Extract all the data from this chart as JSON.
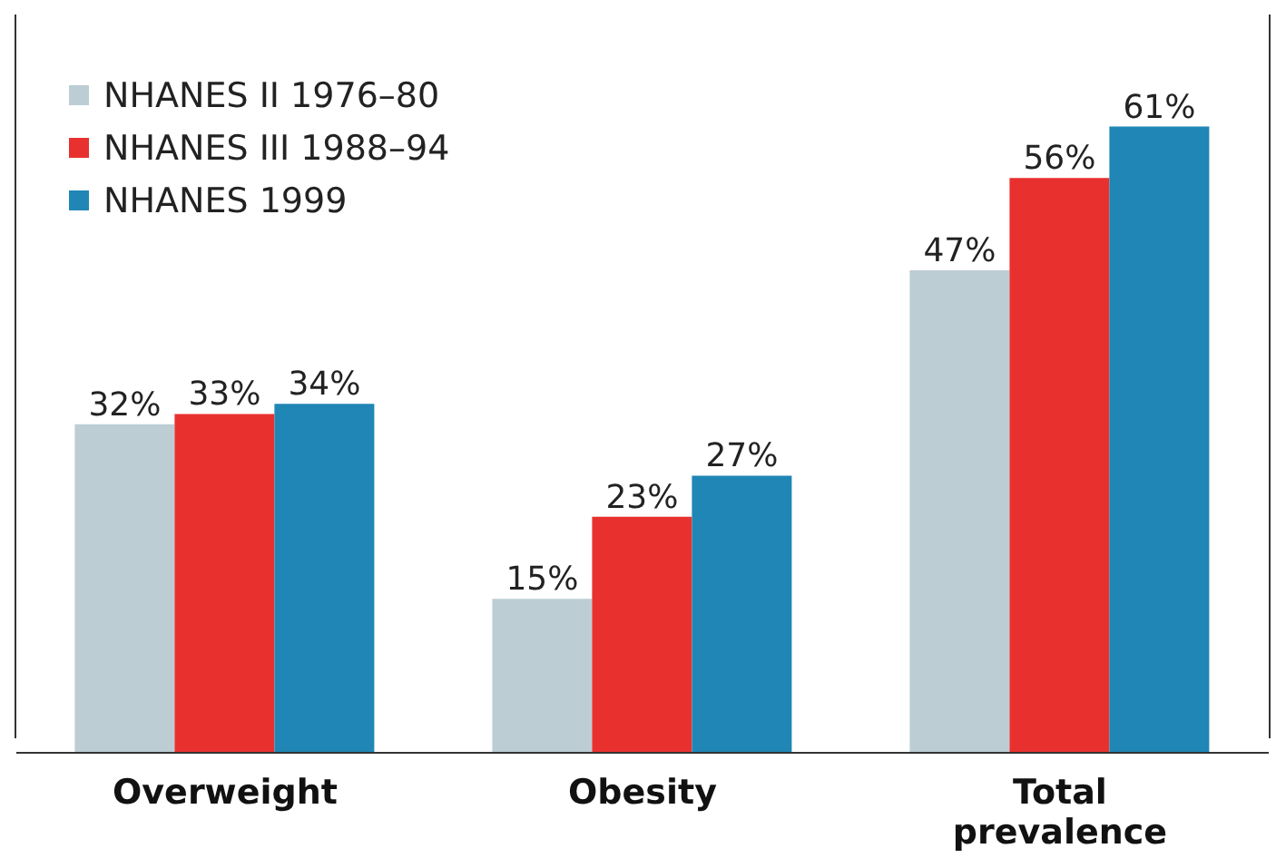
{
  "chart_data": {
    "type": "bar",
    "categories": [
      "Overweight",
      "Obesity",
      "Total prevalence"
    ],
    "series": [
      {
        "name": "NHANES II 1976–80",
        "color": "#bccdd4",
        "values": [
          32,
          15,
          47
        ],
        "value_labels": [
          "32%",
          "15%",
          "47%"
        ]
      },
      {
        "name": "NHANES III 1988–94",
        "color": "#e8312f",
        "values": [
          33,
          23,
          56
        ],
        "value_labels": [
          "33%",
          "23%",
          "56%"
        ]
      },
      {
        "name": "NHANES 1999",
        "color": "#1f86b5",
        "values": [
          34,
          27,
          61
        ],
        "value_labels": [
          "34%",
          "27%",
          "61%"
        ]
      }
    ],
    "legend": "top left",
    "grid": false
  }
}
